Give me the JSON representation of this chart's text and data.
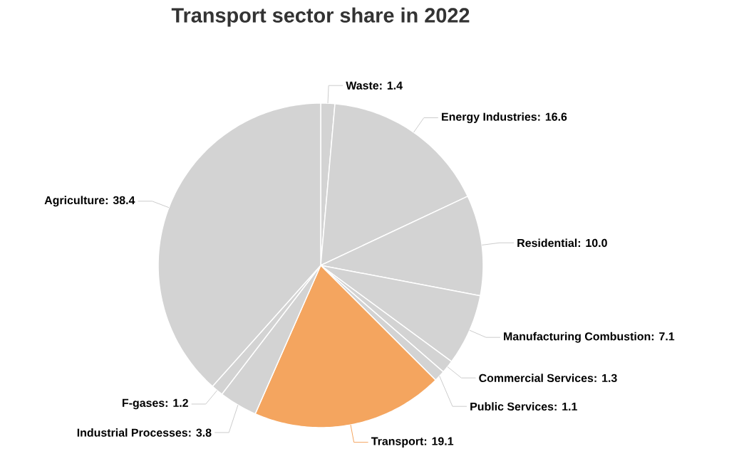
{
  "chart_data": {
    "type": "pie",
    "title": "Transport sector share in 2022",
    "categories": [
      "Waste",
      "Energy Industries",
      "Residential",
      "Manufacturing Combustion",
      "Commercial Services",
      "Public Services",
      "Transport",
      "Industrial Processes",
      "F-gases",
      "Agriculture"
    ],
    "values": [
      1.4,
      16.6,
      10.0,
      7.1,
      1.3,
      1.1,
      19.1,
      3.8,
      1.2,
      38.4
    ],
    "colors": [
      "#d3d3d3",
      "#d3d3d3",
      "#d3d3d3",
      "#d3d3d3",
      "#d3d3d3",
      "#d3d3d3",
      "#f4a55f",
      "#d3d3d3",
      "#d3d3d3",
      "#d3d3d3"
    ],
    "value_labels": [
      ": 1.4",
      ": 16.6",
      ": 10.0",
      ": 7.1",
      ": 1.3",
      ": 1.1",
      ": 19.1",
      ": 3.8",
      ": 1.2",
      ": 38.4"
    ]
  }
}
